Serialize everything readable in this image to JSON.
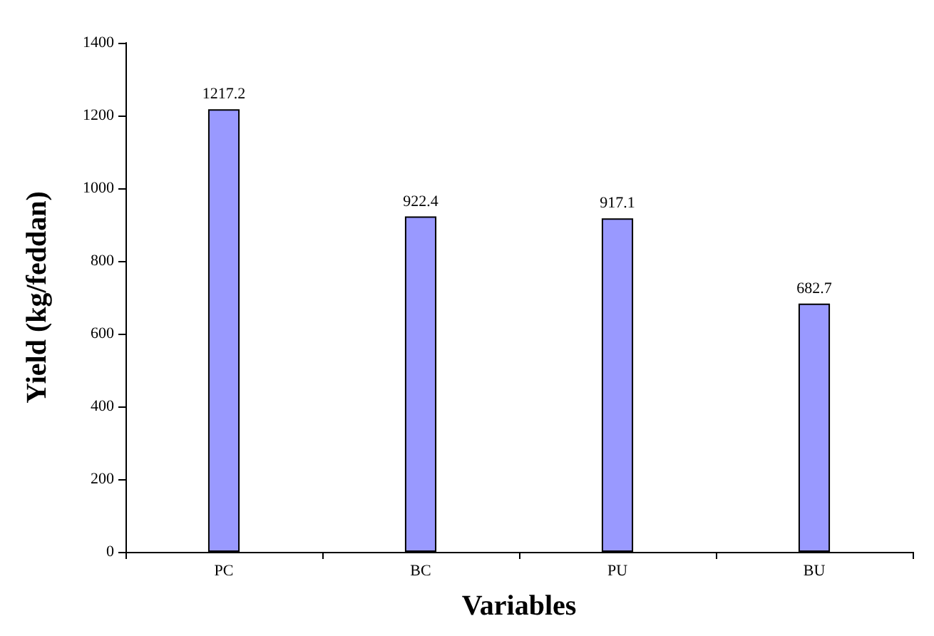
{
  "chart_data": {
    "type": "bar",
    "xlabel": "Variables",
    "ylabel": "Yield (kg/feddan)",
    "categories": [
      "PC",
      "BC",
      "PU",
      "BU"
    ],
    "values": [
      1217.2,
      922.4,
      917.1,
      682.7
    ],
    "color": "#9999ff",
    "data_labels": true,
    "ylim": [
      0,
      1400
    ],
    "yticks": [
      0,
      200,
      400,
      600,
      800,
      1000,
      1200,
      1400
    ],
    "grid": false
  }
}
